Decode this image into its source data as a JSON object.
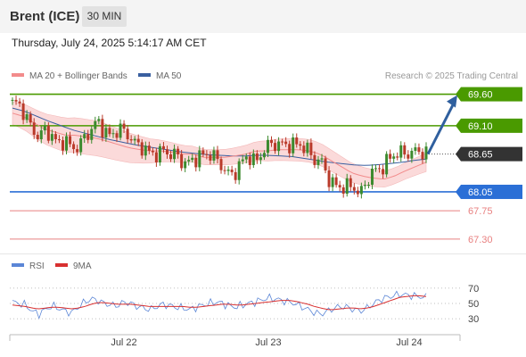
{
  "header": {
    "instrument": "Brent (ICE)",
    "timeframe": "30 MIN"
  },
  "timestamp": "Thursday, July 24, 2025 5:14:17 AM CET",
  "legend": {
    "ma20_bb": {
      "label": "MA 20 + Bollinger Bands",
      "color": "#f28b8b"
    },
    "ma50": {
      "label": "MA 50",
      "color": "#3a5fa0"
    }
  },
  "credit": "Research © 2025 Trading Central",
  "colors": {
    "resistance": "#4a9a00",
    "current": "#333333",
    "support": "#2b6fd6",
    "lower_support": "#e88080",
    "arrow": "#2f5f9e",
    "bull_candle": "#3c8a2e",
    "bear_candle": "#b93a2a",
    "bb_fill": "#fbdada",
    "rsi": "#5b86d6",
    "rsi_ma": "#d83030"
  },
  "chart_data": [
    {
      "type": "candlestick",
      "title": "Brent (ICE) 30 MIN",
      "ylim": [
        67.1,
        69.75
      ],
      "x_tick_labels": [
        "Jul 22",
        "Jul 23",
        "Jul 24"
      ],
      "price_levels": [
        {
          "value": "69.60",
          "kind": "resistance"
        },
        {
          "value": "69.10",
          "kind": "resistance"
        },
        {
          "value": "68.65",
          "kind": "current"
        },
        {
          "value": "68.05",
          "kind": "support"
        },
        {
          "value": "67.75",
          "kind": "lower_support"
        },
        {
          "value": "67.30",
          "kind": "lower_support"
        }
      ],
      "close_series": [
        69.45,
        69.4,
        69.25,
        69.1,
        68.9,
        69.0,
        68.95,
        68.85,
        68.85,
        68.7,
        68.8,
        68.95,
        69.0,
        69.15,
        69.05,
        68.95,
        69.0,
        69.0,
        68.95,
        68.8,
        68.7,
        68.65,
        68.7,
        68.7,
        68.6,
        68.65,
        68.55,
        68.5,
        68.55,
        68.65,
        68.7,
        68.55,
        68.4,
        68.35,
        68.4,
        68.5,
        68.6,
        68.55,
        68.7,
        68.75,
        68.8,
        68.85,
        68.8,
        68.75,
        68.8,
        68.75,
        68.55,
        68.5,
        68.3,
        68.2,
        68.1,
        68.1,
        68.15,
        68.05,
        68.2,
        68.35,
        68.45,
        68.55,
        68.6,
        68.65,
        68.7,
        68.7,
        68.65,
        68.65
      ],
      "ma20": [
        69.3,
        69.25,
        69.15,
        69.05,
        69.0,
        68.95,
        68.95,
        68.92,
        68.9,
        68.85,
        68.8,
        68.75,
        68.72,
        68.7,
        68.7,
        68.68,
        68.65,
        68.65,
        68.6,
        68.6,
        68.6,
        68.62,
        68.65,
        68.7,
        68.7,
        68.72,
        68.72,
        68.72,
        68.7,
        68.65,
        68.55,
        68.45,
        68.35,
        68.3,
        68.27,
        68.25,
        68.3,
        68.38,
        68.45,
        68.52
      ],
      "ma50": [
        69.38,
        69.33,
        69.25,
        69.17,
        69.1,
        69.03,
        68.98,
        68.93,
        68.88,
        68.84,
        68.8,
        68.77,
        68.74,
        68.71,
        68.68,
        68.66,
        68.64,
        68.63,
        68.62,
        68.62,
        68.63,
        68.63,
        68.62,
        68.61,
        68.58,
        68.55,
        68.52,
        68.5,
        68.48,
        68.47,
        68.48,
        68.5,
        68.52,
        68.55,
        68.57
      ]
    },
    {
      "type": "line",
      "title": "RSI",
      "y_tick_labels": [
        "70",
        "50",
        "30"
      ],
      "ylim": [
        15,
        85
      ],
      "series": [
        {
          "name": "RSI",
          "values": [
            52,
            50,
            48,
            40,
            36,
            42,
            47,
            44,
            40,
            38,
            45,
            52,
            56,
            54,
            50,
            48,
            47,
            52,
            50,
            46,
            44,
            42,
            46,
            49,
            47,
            45,
            44,
            42,
            45,
            48,
            50,
            52,
            50,
            47,
            45,
            48,
            50,
            52,
            55,
            57,
            56,
            54,
            52,
            50,
            46,
            42,
            38,
            36,
            40,
            44,
            46,
            45,
            42,
            40,
            44,
            50,
            55,
            58,
            60,
            62,
            61,
            60,
            59,
            58
          ]
        },
        {
          "name": "9MA",
          "values": [
            48,
            47,
            46,
            44,
            43,
            44,
            45,
            45,
            44,
            43,
            44,
            46,
            49,
            51,
            51,
            50,
            49,
            49,
            49,
            48,
            47,
            46,
            46,
            46,
            46,
            46,
            46,
            45,
            45,
            46,
            47,
            48,
            49,
            49,
            48,
            48,
            49,
            50,
            51,
            52,
            53,
            54,
            54,
            53,
            51,
            49,
            46,
            44,
            42,
            42,
            43,
            44,
            44,
            43,
            44,
            46,
            49,
            52,
            55,
            58,
            59,
            60,
            60,
            59
          ]
        }
      ]
    }
  ]
}
